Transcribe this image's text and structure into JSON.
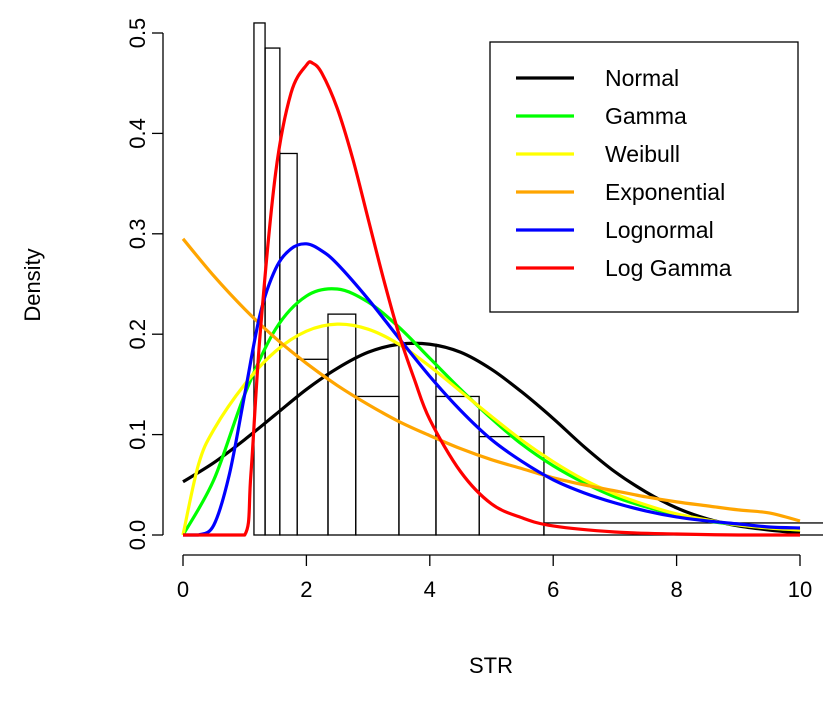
{
  "chart_data": {
    "type": "histogram",
    "title": "",
    "xlabel": "STR",
    "ylabel": "Density",
    "xlim": [
      0,
      10
    ],
    "ylim": [
      0,
      0.5
    ],
    "x_ticks": [
      "0",
      "2",
      "4",
      "6",
      "8",
      "10"
    ],
    "y_ticks": [
      "0.0",
      "0.1",
      "0.2",
      "0.3",
      "0.4",
      "0.5"
    ],
    "grid": false,
    "legend_position": "top-right",
    "histogram": {
      "bins": [
        {
          "x0": 1.15,
          "x1": 1.33,
          "density": 0.51
        },
        {
          "x0": 1.33,
          "x1": 1.57,
          "density": 0.485
        },
        {
          "x0": 1.57,
          "x1": 1.85,
          "density": 0.38
        },
        {
          "x0": 1.85,
          "x1": 2.35,
          "density": 0.175
        },
        {
          "x0": 2.35,
          "x1": 2.8,
          "density": 0.22
        },
        {
          "x0": 2.8,
          "x1": 3.5,
          "density": 0.138
        },
        {
          "x0": 3.5,
          "x1": 4.1,
          "density": 0.19
        },
        {
          "x0": 4.1,
          "x1": 4.8,
          "density": 0.138
        },
        {
          "x0": 4.8,
          "x1": 5.85,
          "density": 0.098
        },
        {
          "x0": 5.85,
          "x1": 10.5,
          "density": 0.012
        }
      ]
    },
    "series": [
      {
        "name": "Normal",
        "color": "#000000",
        "x": [
          0,
          0.5,
          1,
          1.5,
          2,
          2.5,
          3,
          3.5,
          4,
          4.5,
          5,
          5.5,
          6,
          6.5,
          7,
          7.5,
          8,
          8.5,
          9,
          9.5,
          10
        ],
        "y": [
          0.053,
          0.072,
          0.095,
          0.12,
          0.145,
          0.166,
          0.182,
          0.19,
          0.19,
          0.182,
          0.165,
          0.142,
          0.116,
          0.088,
          0.063,
          0.043,
          0.027,
          0.016,
          0.009,
          0.005,
          0.002
        ]
      },
      {
        "name": "Gamma",
        "color": "#00ff00",
        "x": [
          0,
          0.5,
          1,
          1.5,
          2,
          2.5,
          3,
          3.5,
          4,
          4.5,
          5,
          5.5,
          6,
          6.5,
          7,
          7.5,
          8,
          8.5,
          9,
          9.5,
          10
        ],
        "y": [
          0,
          0.055,
          0.14,
          0.205,
          0.238,
          0.245,
          0.232,
          0.207,
          0.176,
          0.145,
          0.116,
          0.09,
          0.069,
          0.052,
          0.038,
          0.028,
          0.02,
          0.014,
          0.01,
          0.007,
          0.005
        ]
      },
      {
        "name": "Weibull",
        "color": "#ffff00",
        "x": [
          0,
          0.25,
          0.5,
          1,
          1.5,
          2,
          2.5,
          3,
          3.5,
          4,
          4.5,
          5,
          5.5,
          6,
          6.5,
          7,
          7.5,
          8,
          8.5,
          9,
          9.5,
          10
        ],
        "y": [
          0,
          0.07,
          0.105,
          0.15,
          0.183,
          0.203,
          0.21,
          0.205,
          0.19,
          0.168,
          0.143,
          0.118,
          0.094,
          0.073,
          0.055,
          0.041,
          0.03,
          0.021,
          0.015,
          0.01,
          0.007,
          0.005
        ]
      },
      {
        "name": "Exponential",
        "color": "#ffa500",
        "x": [
          0,
          0.5,
          1,
          1.5,
          2,
          2.5,
          3,
          3.5,
          4,
          4.5,
          5,
          5.5,
          6,
          6.5,
          7,
          7.5,
          8,
          8.5,
          9,
          9.5,
          10
        ],
        "y": [
          0.295,
          0.258,
          0.225,
          0.196,
          0.171,
          0.149,
          0.13,
          0.113,
          0.099,
          0.086,
          0.075,
          0.066,
          0.057,
          0.05,
          0.044,
          0.038,
          0.033,
          0.029,
          0.025,
          0.022,
          0.014
        ]
      },
      {
        "name": "Lognormal",
        "color": "#0000ff",
        "x": [
          0,
          0.25,
          0.5,
          0.75,
          1,
          1.25,
          1.5,
          1.75,
          2,
          2.25,
          2.5,
          3,
          3.5,
          4,
          4.5,
          5,
          5.5,
          6,
          6.5,
          7,
          7.5,
          8,
          8.5,
          9,
          9.5,
          10
        ],
        "y": [
          0,
          0,
          0.01,
          0.06,
          0.14,
          0.22,
          0.265,
          0.285,
          0.29,
          0.283,
          0.27,
          0.235,
          0.196,
          0.158,
          0.124,
          0.095,
          0.073,
          0.055,
          0.042,
          0.032,
          0.024,
          0.018,
          0.014,
          0.011,
          0.008,
          0.007
        ]
      },
      {
        "name": "Log Gamma",
        "color": "#ff0000",
        "x": [
          0,
          0.5,
          1,
          1.1,
          1.25,
          1.5,
          1.75,
          2,
          2.1,
          2.25,
          2.5,
          2.75,
          3,
          3.25,
          3.5,
          3.75,
          4,
          4.5,
          5,
          5.5,
          6,
          7,
          8,
          9,
          10
        ],
        "y": [
          0,
          0,
          0,
          0.06,
          0.2,
          0.36,
          0.44,
          0.468,
          0.47,
          0.46,
          0.425,
          0.375,
          0.315,
          0.255,
          0.2,
          0.155,
          0.115,
          0.063,
          0.031,
          0.017,
          0.009,
          0.003,
          0.001,
          0,
          0
        ]
      }
    ]
  }
}
